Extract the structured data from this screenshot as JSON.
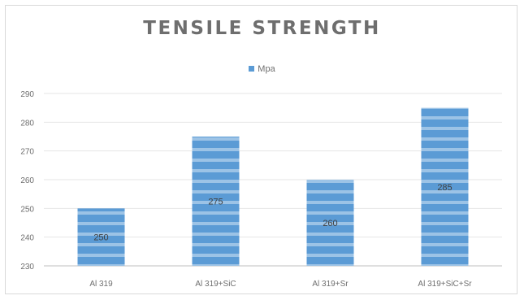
{
  "chart_data": {
    "type": "bar",
    "title": "TENSILE STRENGTH",
    "categories": [
      "Al 319",
      "Al 319+SiC",
      "Al 319+Sr",
      "Al 319+SiC+Sr"
    ],
    "series": [
      {
        "name": "Mpa",
        "values": [
          250,
          275,
          260,
          285
        ]
      }
    ],
    "data_labels": [
      "250",
      "275",
      "260",
      "285"
    ],
    "ylim": [
      230,
      290
    ],
    "yticks": [
      230,
      240,
      250,
      260,
      270,
      280,
      290
    ],
    "xlabel": "",
    "ylabel": "",
    "grid": true,
    "legend_position": "top",
    "colors": {
      "bar": "#5b9bd5",
      "bar_stripe": "#9cc3e6",
      "grid": "#e6e6e6",
      "axis": "#bfbfbf",
      "text": "#6e6e6e"
    }
  }
}
